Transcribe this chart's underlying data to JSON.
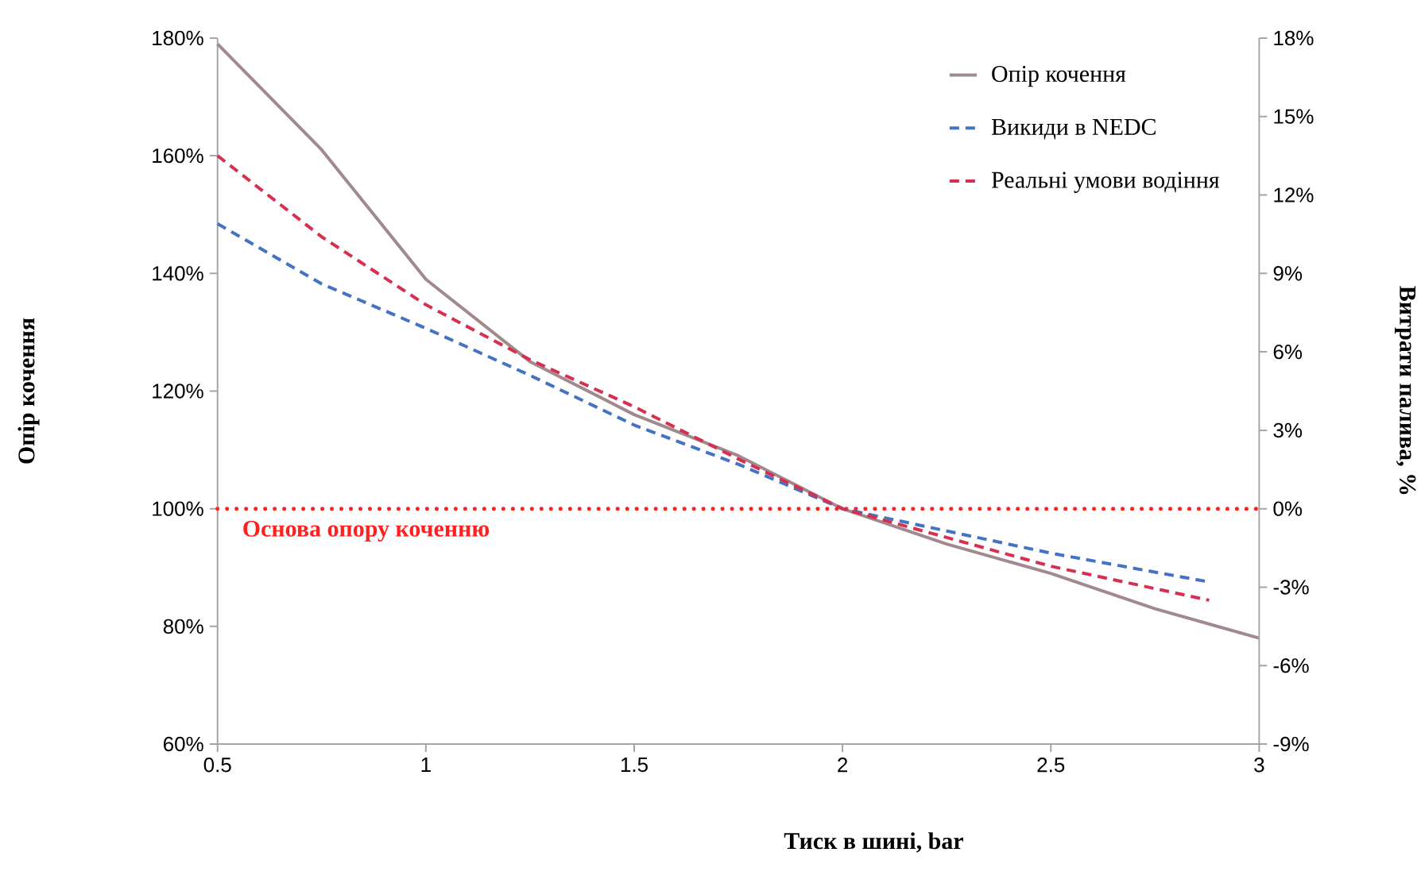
{
  "chart_data": {
    "type": "line",
    "xlabel": "Тиск в шині, bar",
    "ylabel": "Опір кочення",
    "y2label": "Витрати палива, %",
    "series": [
      {
        "name": "Опір кочення",
        "color": "#a08a8e",
        "line_style": "solid",
        "x": [
          0.5,
          0.75,
          1.0,
          1.25,
          1.5,
          1.75,
          2.0,
          2.25,
          2.5,
          2.75,
          3.0
        ],
        "values": [
          179,
          161,
          139,
          125,
          116,
          109,
          100,
          94,
          89,
          83,
          78
        ]
      },
      {
        "name": "Викиди в NEDC",
        "color": "#4472c4",
        "line_style": "dashed",
        "axis": "y2",
        "x": [
          0.5,
          0.75,
          1.0,
          1.25,
          1.5,
          1.75,
          2.0,
          2.5,
          2.88
        ],
        "values": [
          10.9,
          8.6,
          6.9,
          5.1,
          3.2,
          1.7,
          0,
          -1.7,
          -2.8
        ]
      },
      {
        "name": "Реальні умови водіння",
        "color": "#d6304f",
        "line_style": "dashed",
        "axis": "y2",
        "x": [
          0.5,
          0.75,
          1.0,
          1.25,
          1.5,
          1.75,
          2.0,
          2.5,
          2.88
        ],
        "values": [
          13.5,
          10.4,
          7.8,
          5.7,
          3.9,
          1.9,
          0,
          -2.2,
          -3.5
        ]
      }
    ],
    "xlim": [
      0.5,
      3
    ],
    "xticks": [
      0.5,
      1,
      1.5,
      2,
      2.5,
      3
    ],
    "ylim": [
      60,
      180
    ],
    "yticks": [
      {
        "value": 60,
        "label": "60%"
      },
      {
        "value": 80,
        "label": "80%"
      },
      {
        "value": 100,
        "label": "100%"
      },
      {
        "value": 120,
        "label": "120%"
      },
      {
        "value": 140,
        "label": "140%"
      },
      {
        "value": 160,
        "label": "160%"
      },
      {
        "value": 180,
        "label": "180%"
      }
    ],
    "y2lim": [
      -9,
      18
    ],
    "y2ticks": [
      {
        "value": -9,
        "label": "-9%"
      },
      {
        "value": -6,
        "label": "-6%"
      },
      {
        "value": -3,
        "label": "-3%"
      },
      {
        "value": 0,
        "label": "0%"
      },
      {
        "value": 3,
        "label": "3%"
      },
      {
        "value": 6,
        "label": "6%"
      },
      {
        "value": 9,
        "label": "9%"
      },
      {
        "value": 12,
        "label": "12%"
      },
      {
        "value": 15,
        "label": "15%"
      },
      {
        "value": 18,
        "label": "18%"
      }
    ],
    "ref_lines": [
      {
        "axis": "y",
        "value": 100,
        "label": "Основа опору коченню",
        "color": "#ff2020",
        "line_style": "dotted"
      }
    ],
    "legend": "top right",
    "grid": false,
    "marker": "none"
  }
}
